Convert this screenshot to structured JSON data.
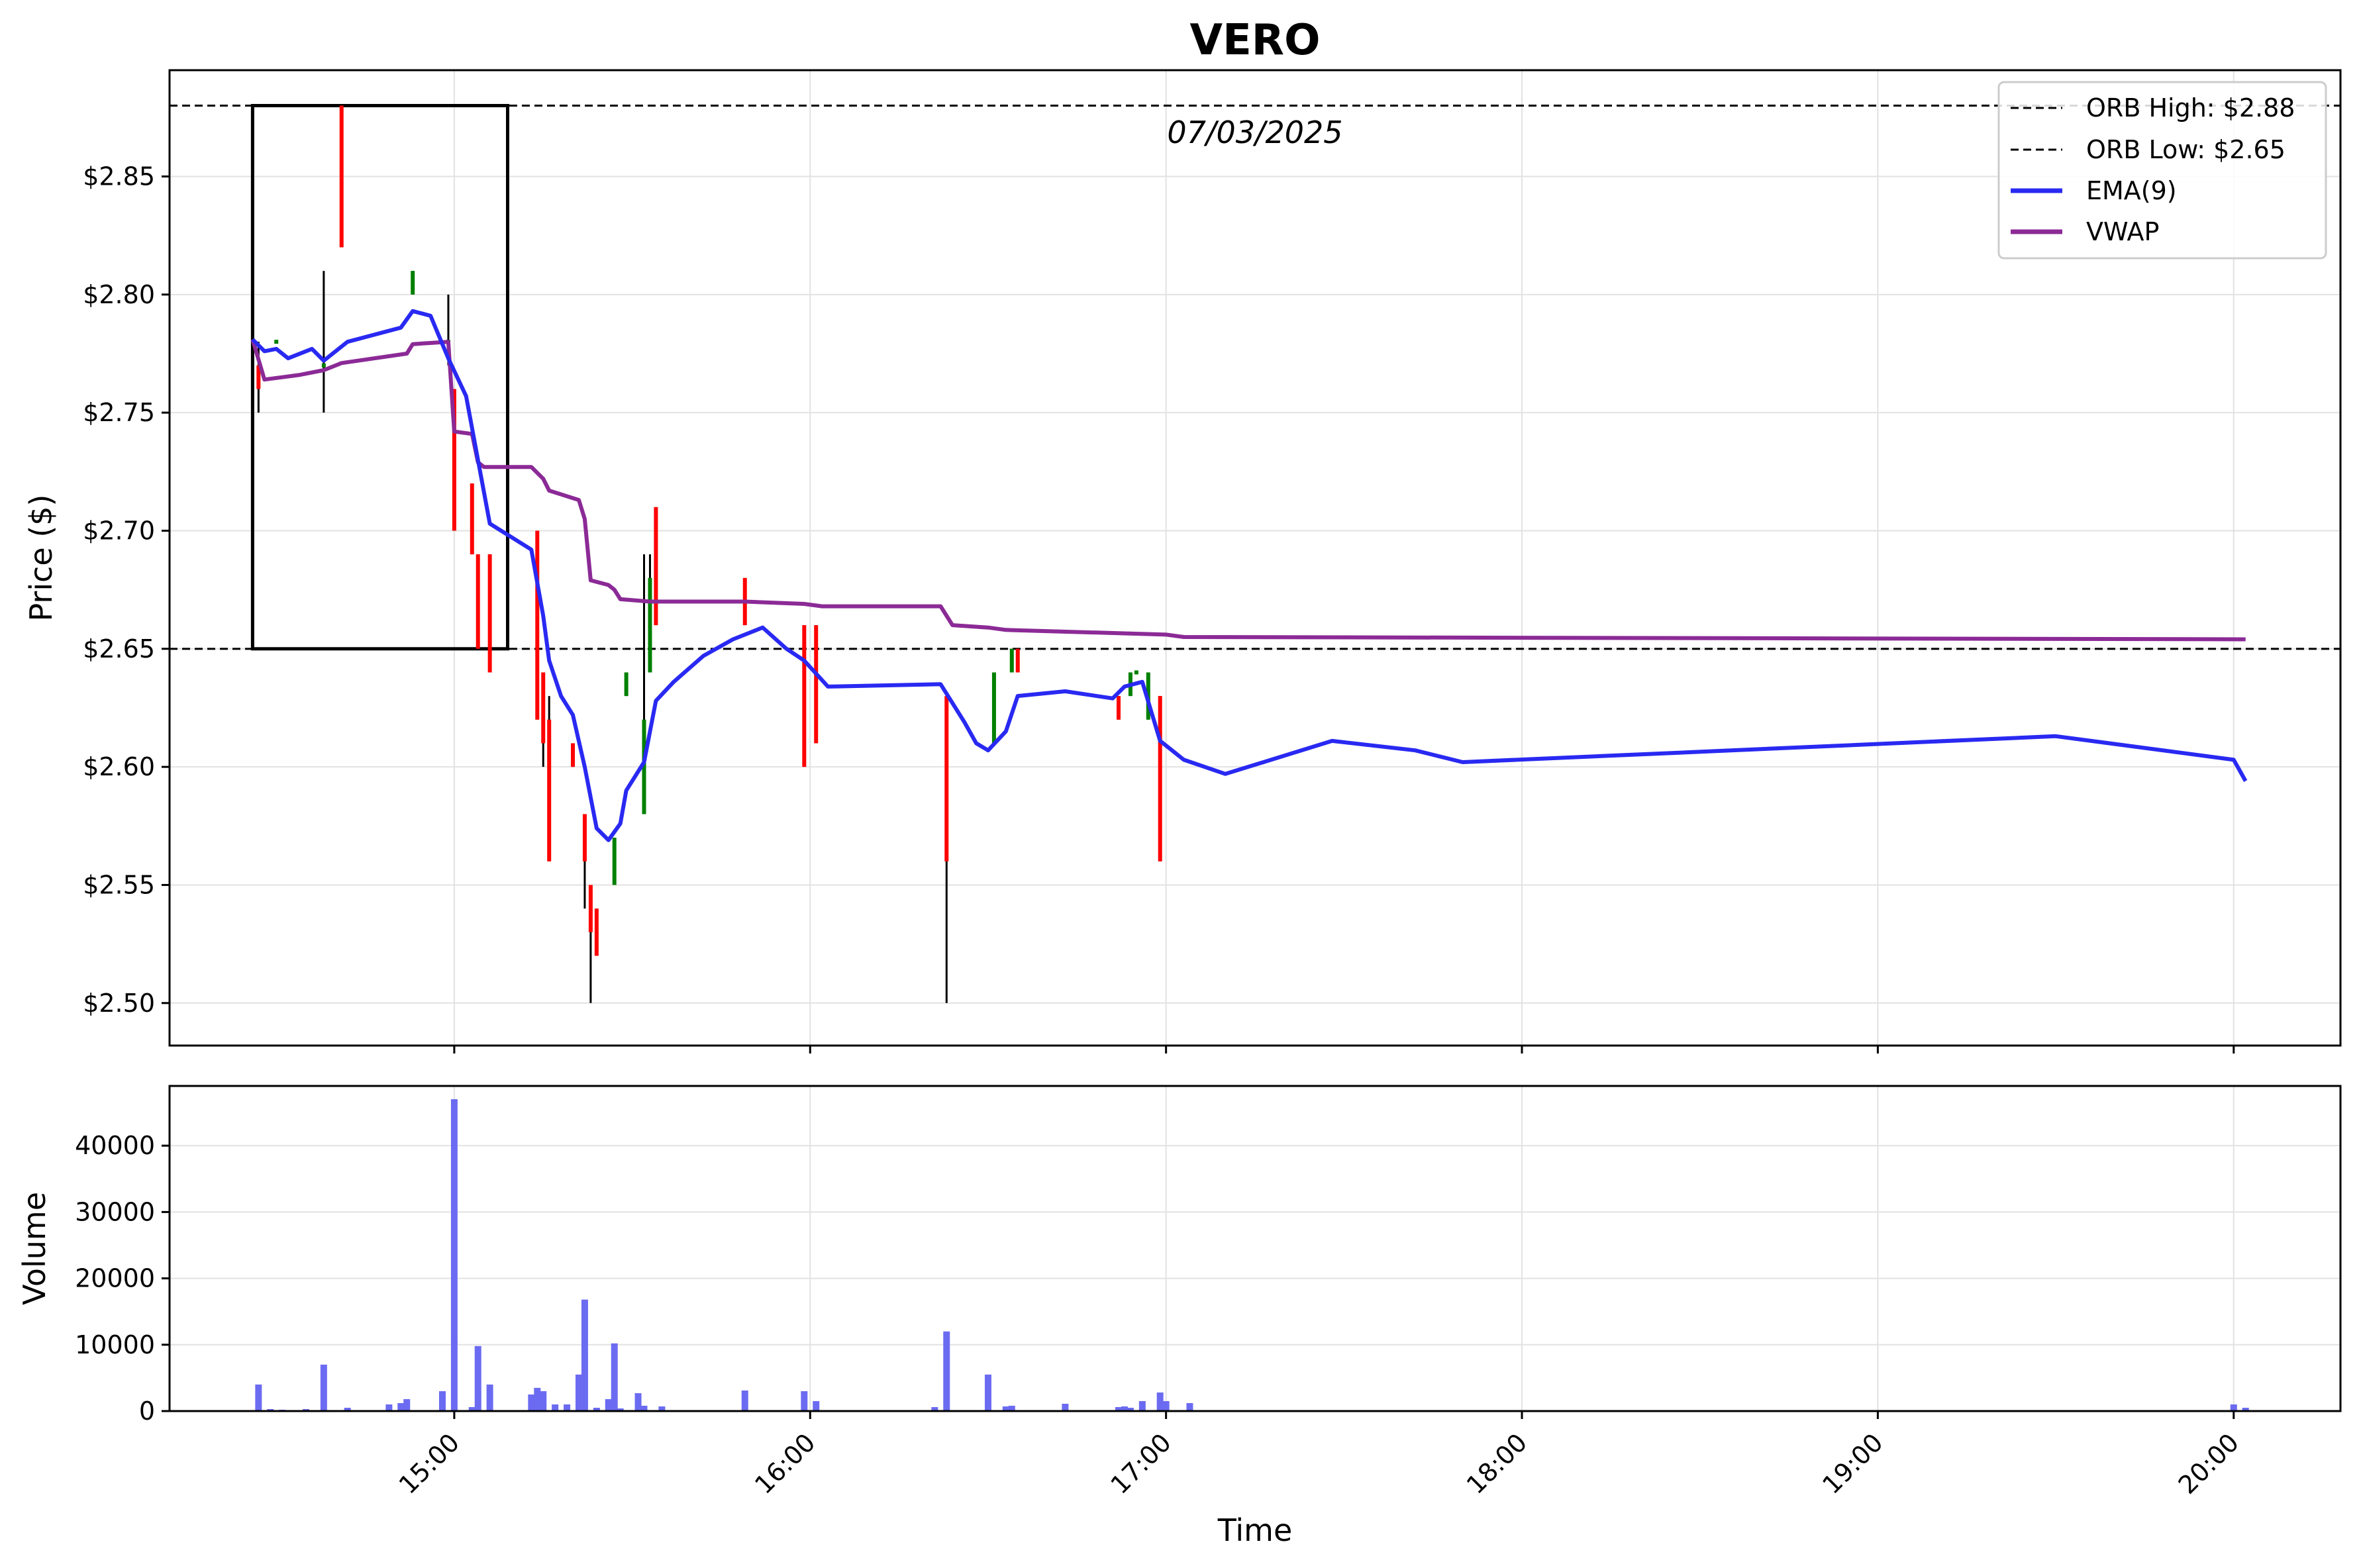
{
  "chart_data": {
    "type": "candlestick",
    "title": "VERO",
    "date_label": "07/03/2025",
    "price_panel": {
      "ylabel": "Price ($)",
      "ylim": [
        2.482,
        2.895
      ],
      "yticks": [
        2.5,
        2.55,
        2.6,
        2.65,
        2.7,
        2.75,
        2.8,
        2.85
      ],
      "ytick_labels": [
        "$2.50",
        "$2.55",
        "$2.60",
        "$2.65",
        "$2.70",
        "$2.75",
        "$2.80",
        "$2.85"
      ],
      "orb_high": 2.88,
      "orb_low": 2.65,
      "orb_box": {
        "x_start": "14:26",
        "x_end": "15:09",
        "low": 2.65,
        "high": 2.88
      },
      "candles": [
        {
          "t": "14:27",
          "o": 2.77,
          "h": 2.78,
          "l": 2.75,
          "c": 2.76
        },
        {
          "t": "14:30",
          "o": 2.78,
          "h": 2.78,
          "l": 2.78,
          "c": 2.78
        },
        {
          "t": "14:38",
          "o": 2.77,
          "h": 2.81,
          "l": 2.75,
          "c": 2.77
        },
        {
          "t": "14:41",
          "o": 2.88,
          "h": 2.88,
          "l": 2.82,
          "c": 2.82
        },
        {
          "t": "14:53",
          "o": 2.8,
          "h": 2.81,
          "l": 2.8,
          "c": 2.81
        },
        {
          "t": "14:59",
          "o": 2.78,
          "h": 2.8,
          "l": 2.77,
          "c": 2.78
        },
        {
          "t": "15:00",
          "o": 2.76,
          "h": 2.76,
          "l": 2.7,
          "c": 2.7
        },
        {
          "t": "15:03",
          "o": 2.72,
          "h": 2.72,
          "l": 2.69,
          "c": 2.69
        },
        {
          "t": "15:04",
          "o": 2.69,
          "h": 2.69,
          "l": 2.65,
          "c": 2.65
        },
        {
          "t": "15:06",
          "o": 2.69,
          "h": 2.69,
          "l": 2.64,
          "c": 2.64
        },
        {
          "t": "15:14",
          "o": 2.7,
          "h": 2.7,
          "l": 2.62,
          "c": 2.62
        },
        {
          "t": "15:15",
          "o": 2.64,
          "h": 2.64,
          "l": 2.6,
          "c": 2.61
        },
        {
          "t": "15:16",
          "o": 2.62,
          "h": 2.63,
          "l": 2.56,
          "c": 2.56
        },
        {
          "t": "15:20",
          "o": 2.61,
          "h": 2.61,
          "l": 2.6,
          "c": 2.6
        },
        {
          "t": "15:22",
          "o": 2.58,
          "h": 2.58,
          "l": 2.54,
          "c": 2.56
        },
        {
          "t": "15:23",
          "o": 2.55,
          "h": 2.55,
          "l": 2.5,
          "c": 2.53
        },
        {
          "t": "15:24",
          "o": 2.54,
          "h": 2.54,
          "l": 2.52,
          "c": 2.52
        },
        {
          "t": "15:27",
          "o": 2.55,
          "h": 2.57,
          "l": 2.55,
          "c": 2.57
        },
        {
          "t": "15:29",
          "o": 2.63,
          "h": 2.64,
          "l": 2.63,
          "c": 2.64
        },
        {
          "t": "15:32",
          "o": 2.58,
          "h": 2.69,
          "l": 2.58,
          "c": 2.62
        },
        {
          "t": "15:33",
          "o": 2.64,
          "h": 2.69,
          "l": 2.64,
          "c": 2.68
        },
        {
          "t": "15:34",
          "o": 2.71,
          "h": 2.71,
          "l": 2.66,
          "c": 2.66
        },
        {
          "t": "15:49",
          "o": 2.68,
          "h": 2.68,
          "l": 2.66,
          "c": 2.66
        },
        {
          "t": "15:59",
          "o": 2.66,
          "h": 2.66,
          "l": 2.6,
          "c": 2.6
        },
        {
          "t": "16:01",
          "o": 2.66,
          "h": 2.66,
          "l": 2.61,
          "c": 2.61
        },
        {
          "t": "16:23",
          "o": 2.63,
          "h": 2.63,
          "l": 2.5,
          "c": 2.56
        },
        {
          "t": "16:31",
          "o": 2.61,
          "h": 2.64,
          "l": 2.61,
          "c": 2.64
        },
        {
          "t": "16:34",
          "o": 2.64,
          "h": 2.65,
          "l": 2.64,
          "c": 2.65
        },
        {
          "t": "16:35",
          "o": 2.65,
          "h": 2.65,
          "l": 2.64,
          "c": 2.64
        },
        {
          "t": "16:52",
          "o": 2.63,
          "h": 2.63,
          "l": 2.62,
          "c": 2.62
        },
        {
          "t": "16:54",
          "o": 2.63,
          "h": 2.64,
          "l": 2.63,
          "c": 2.64
        },
        {
          "t": "16:55",
          "o": 2.64,
          "h": 2.64,
          "l": 2.64,
          "c": 2.64
        },
        {
          "t": "16:57",
          "o": 2.62,
          "h": 2.64,
          "l": 2.62,
          "c": 2.64
        },
        {
          "t": "16:59",
          "o": 2.63,
          "h": 2.63,
          "l": 2.56,
          "c": 2.56
        }
      ],
      "ema": {
        "name": "EMA(9)",
        "points": [
          [
            "14:26",
            2.781
          ],
          [
            "14:28",
            2.776
          ],
          [
            "14:30",
            2.777
          ],
          [
            "14:32",
            2.773
          ],
          [
            "14:36",
            2.777
          ],
          [
            "14:38",
            2.772
          ],
          [
            "14:42",
            2.78
          ],
          [
            "14:51",
            2.786
          ],
          [
            "14:53",
            2.793
          ],
          [
            "14:56",
            2.791
          ],
          [
            "14:59",
            2.773
          ],
          [
            "15:02",
            2.757
          ],
          [
            "15:06",
            2.703
          ],
          [
            "15:13",
            2.692
          ],
          [
            "15:15",
            2.664
          ],
          [
            "15:16",
            2.645
          ],
          [
            "15:18",
            2.63
          ],
          [
            "15:20",
            2.622
          ],
          [
            "15:22",
            2.6
          ],
          [
            "15:24",
            2.574
          ],
          [
            "15:26",
            2.569
          ],
          [
            "15:28",
            2.576
          ],
          [
            "15:29",
            2.59
          ],
          [
            "15:32",
            2.602
          ],
          [
            "15:34",
            2.628
          ],
          [
            "15:37",
            2.636
          ],
          [
            "15:42",
            2.647
          ],
          [
            "15:47",
            2.654
          ],
          [
            "15:52",
            2.659
          ],
          [
            "15:56",
            2.65
          ],
          [
            "15:59",
            2.645
          ],
          [
            "16:03",
            2.634
          ],
          [
            "16:22",
            2.635
          ],
          [
            "16:26",
            2.619
          ],
          [
            "16:28",
            2.61
          ],
          [
            "16:30",
            2.607
          ],
          [
            "16:33",
            2.615
          ],
          [
            "16:35",
            2.63
          ],
          [
            "16:43",
            2.632
          ],
          [
            "16:51",
            2.629
          ],
          [
            "16:53",
            2.634
          ],
          [
            "16:56",
            2.636
          ],
          [
            "16:59",
            2.611
          ],
          [
            "17:03",
            2.603
          ],
          [
            "17:10",
            2.597
          ],
          [
            "17:28",
            2.611
          ],
          [
            "17:42",
            2.607
          ],
          [
            "17:50",
            2.602
          ],
          [
            "19:30",
            2.613
          ],
          [
            "20:00",
            2.603
          ],
          [
            "20:02",
            2.594
          ]
        ]
      },
      "vwap": {
        "name": "VWAP",
        "points": [
          [
            "14:26",
            2.781
          ],
          [
            "14:28",
            2.764
          ],
          [
            "14:31",
            2.765
          ],
          [
            "14:34",
            2.766
          ],
          [
            "14:38",
            2.768
          ],
          [
            "14:41",
            2.771
          ],
          [
            "14:52",
            2.775
          ],
          [
            "14:53",
            2.779
          ],
          [
            "14:59",
            2.78
          ],
          [
            "15:00",
            2.742
          ],
          [
            "15:03",
            2.741
          ],
          [
            "15:04",
            2.729
          ],
          [
            "15:05",
            2.727
          ],
          [
            "15:13",
            2.727
          ],
          [
            "15:15",
            2.722
          ],
          [
            "15:16",
            2.717
          ],
          [
            "15:21",
            2.713
          ],
          [
            "15:22",
            2.705
          ],
          [
            "15:23",
            2.679
          ],
          [
            "15:26",
            2.677
          ],
          [
            "15:27",
            2.675
          ],
          [
            "15:28",
            2.671
          ],
          [
            "15:33",
            2.67
          ],
          [
            "15:49",
            2.67
          ],
          [
            "15:59",
            2.669
          ],
          [
            "16:02",
            2.668
          ],
          [
            "16:22",
            2.668
          ],
          [
            "16:24",
            2.66
          ],
          [
            "16:30",
            2.659
          ],
          [
            "16:33",
            2.658
          ],
          [
            "17:00",
            2.656
          ],
          [
            "17:03",
            2.655
          ],
          [
            "20:02",
            2.654
          ]
        ]
      },
      "legend": {
        "position": "upper right",
        "entries": [
          "ORB High: $2.88",
          "ORB Low: $2.65",
          "EMA(9)",
          "VWAP"
        ]
      }
    },
    "volume_panel": {
      "ylabel": "Volume",
      "ylim": [
        0,
        49000
      ],
      "yticks": [
        0,
        10000,
        20000,
        30000,
        40000
      ],
      "ytick_labels": [
        "0",
        "10000",
        "20000",
        "30000",
        "40000"
      ],
      "bars": [
        [
          "14:27",
          4000
        ],
        [
          "14:29",
          300
        ],
        [
          "14:31",
          200
        ],
        [
          "14:35",
          300
        ],
        [
          "14:38",
          7000
        ],
        [
          "14:42",
          500
        ],
        [
          "14:49",
          1000
        ],
        [
          "14:51",
          1200
        ],
        [
          "14:52",
          1800
        ],
        [
          "14:58",
          3000
        ],
        [
          "15:00",
          47000
        ],
        [
          "15:03",
          600
        ],
        [
          "15:04",
          9800
        ],
        [
          "15:06",
          4000
        ],
        [
          "15:13",
          2500
        ],
        [
          "15:14",
          3500
        ],
        [
          "15:15",
          3000
        ],
        [
          "15:17",
          1000
        ],
        [
          "15:19",
          1000
        ],
        [
          "15:21",
          5500
        ],
        [
          "15:22",
          16800
        ],
        [
          "15:24",
          500
        ],
        [
          "15:26",
          1800
        ],
        [
          "15:27",
          10200
        ],
        [
          "15:28",
          400
        ],
        [
          "15:31",
          2700
        ],
        [
          "15:32",
          800
        ],
        [
          "15:35",
          700
        ],
        [
          "15:49",
          3100
        ],
        [
          "15:59",
          3000
        ],
        [
          "16:01",
          1500
        ],
        [
          "16:21",
          600
        ],
        [
          "16:23",
          12000
        ],
        [
          "16:30",
          5500
        ],
        [
          "16:33",
          700
        ],
        [
          "16:34",
          800
        ],
        [
          "16:43",
          1100
        ],
        [
          "16:52",
          600
        ],
        [
          "16:53",
          700
        ],
        [
          "16:54",
          500
        ],
        [
          "16:56",
          1500
        ],
        [
          "16:59",
          2800
        ],
        [
          "17:00",
          1500
        ],
        [
          "17:04",
          1200
        ],
        [
          "20:00",
          1000
        ],
        [
          "20:02",
          500
        ]
      ]
    },
    "x_axis": {
      "xlabel": "Time",
      "xlim": [
        "14:12",
        "20:18"
      ],
      "ticks": [
        "15:00",
        "16:00",
        "17:00",
        "18:00",
        "19:00",
        "20:00"
      ],
      "tick_labels": [
        "15:00",
        "16:00",
        "17:00",
        "18:00",
        "19:00",
        "20:00"
      ]
    },
    "grid": true,
    "colors": {
      "up": "#008000",
      "down": "#ff0000",
      "wick": "#000000",
      "ema": "#2929f2",
      "vwap": "#8b2a96",
      "volume": "#6b6bf2",
      "grid": "#e2e2e2"
    }
  }
}
